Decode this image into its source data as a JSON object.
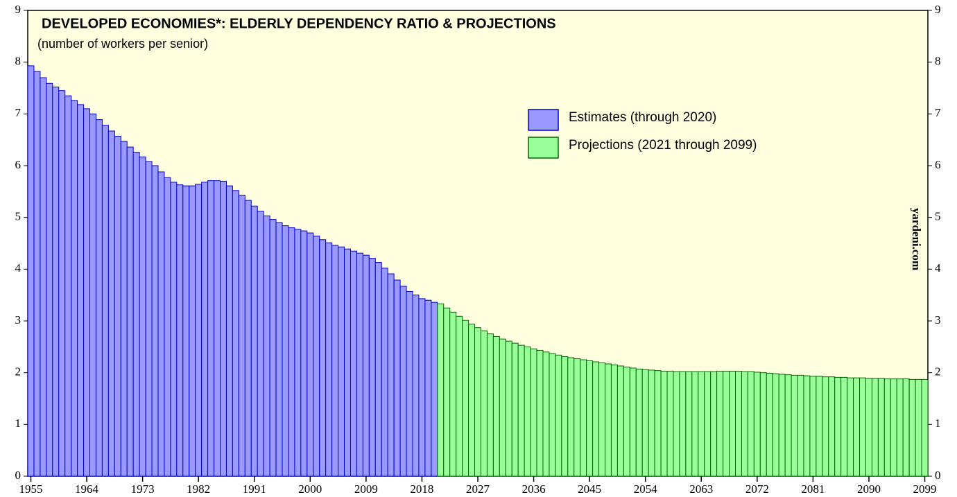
{
  "chart_data": {
    "type": "bar",
    "title": "DEVELOPED ECONOMIES*: ELDERLY DEPENDENCY RATIO & PROJECTIONS",
    "subtitle": "(number of workers per senior)",
    "source": "yardeni.com",
    "xlim": [
      1954.5,
      2099.5
    ],
    "xticks": [
      1955,
      1964,
      1973,
      1982,
      1991,
      2000,
      2009,
      2018,
      2027,
      2036,
      2045,
      2054,
      2063,
      2072,
      2081,
      2090,
      2099
    ],
    "ylim": [
      0,
      9
    ],
    "yticks": [
      0,
      1,
      2,
      3,
      4,
      5,
      6,
      7,
      8,
      9
    ],
    "legend": "upper-right",
    "series": [
      {
        "name": "Estimates (through 2020)",
        "color": "#9999ff",
        "edge": "#0000cc",
        "x_start": 1955,
        "values": [
          7.93,
          7.82,
          7.7,
          7.59,
          7.52,
          7.45,
          7.35,
          7.26,
          7.18,
          7.1,
          7.0,
          6.89,
          6.78,
          6.67,
          6.57,
          6.47,
          6.36,
          6.26,
          6.17,
          6.08,
          6.0,
          5.88,
          5.77,
          5.68,
          5.63,
          5.61,
          5.61,
          5.64,
          5.68,
          5.71,
          5.71,
          5.7,
          5.61,
          5.52,
          5.43,
          5.33,
          5.22,
          5.12,
          5.03,
          4.96,
          4.9,
          4.84,
          4.8,
          4.77,
          4.74,
          4.7,
          4.64,
          4.57,
          4.51,
          4.46,
          4.43,
          4.39,
          4.35,
          4.31,
          4.27,
          4.21,
          4.13,
          4.02,
          3.91,
          3.79,
          3.67,
          3.57,
          3.5,
          3.43,
          3.4,
          3.36
        ]
      },
      {
        "name": "Projections (2021 through 2099)",
        "color": "#99ff99",
        "edge": "#006600",
        "x_start": 2021,
        "values": [
          3.33,
          3.25,
          3.17,
          3.09,
          3.01,
          2.94,
          2.87,
          2.81,
          2.75,
          2.7,
          2.65,
          2.61,
          2.57,
          2.53,
          2.5,
          2.46,
          2.43,
          2.4,
          2.37,
          2.34,
          2.31,
          2.29,
          2.27,
          2.25,
          2.23,
          2.21,
          2.19,
          2.17,
          2.15,
          2.13,
          2.11,
          2.09,
          2.07,
          2.06,
          2.05,
          2.04,
          2.03,
          2.03,
          2.02,
          2.02,
          2.02,
          2.02,
          2.02,
          2.02,
          2.02,
          2.03,
          2.03,
          2.03,
          2.03,
          2.02,
          2.02,
          2.01,
          2.0,
          1.99,
          1.98,
          1.97,
          1.96,
          1.95,
          1.95,
          1.94,
          1.93,
          1.93,
          1.92,
          1.92,
          1.91,
          1.91,
          1.9,
          1.9,
          1.9,
          1.89,
          1.89,
          1.89,
          1.88,
          1.88,
          1.88,
          1.88,
          1.87,
          1.87,
          1.87
        ]
      }
    ]
  }
}
